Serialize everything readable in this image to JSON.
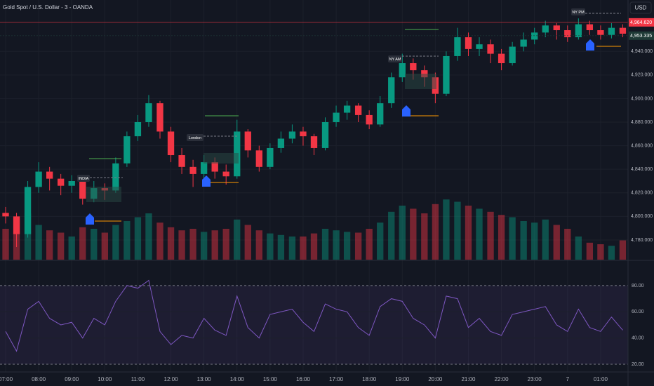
{
  "chart_data": {
    "type": "candlestick",
    "title": "Gold Spot / U.S. Dollar - 3 - OANDA",
    "currency": "USD",
    "x": [
      0,
      0.33,
      0.67,
      1,
      1.33,
      1.67,
      2,
      2.33,
      2.67,
      3,
      3.33,
      3.67,
      4,
      4.33,
      4.67,
      5,
      5.33,
      5.67,
      6,
      6.33,
      6.67,
      7,
      7.33,
      7.67,
      8,
      8.33,
      8.67,
      9,
      9.33,
      9.67,
      10,
      10.33,
      10.67,
      11,
      11.33,
      11.67,
      12,
      12.33,
      12.67,
      13,
      13.33,
      13.67,
      14,
      14.33,
      14.67,
      15,
      15.33,
      15.67,
      16,
      16.33,
      16.67,
      17,
      17.33,
      17.67,
      18,
      18.33,
      18.67
    ],
    "open": [
      4803,
      4800,
      4785,
      4825,
      4838,
      4832,
      4826,
      4830,
      4815,
      4824,
      4822,
      4845,
      4868,
      4880,
      4896,
      4872,
      4852,
      4842,
      4836,
      4846,
      4838,
      4834,
      4872,
      4856,
      4842,
      4858,
      4866,
      4872,
      4868,
      4858,
      4880,
      4888,
      4894,
      4886,
      4878,
      4896,
      4918,
      4930,
      4924,
      4918,
      4904,
      4936,
      4952,
      4942,
      4946,
      4938,
      4930,
      4944,
      4950,
      4956,
      4962,
      4958,
      4952,
      4963,
      4958,
      4954,
      4960
    ],
    "high": [
      4808,
      4803,
      4830,
      4846,
      4842,
      4836,
      4835,
      4833,
      4830,
      4828,
      4850,
      4872,
      4886,
      4903,
      4898,
      4876,
      4858,
      4848,
      4852,
      4850,
      4844,
      4882,
      4874,
      4860,
      4862,
      4872,
      4878,
      4876,
      4870,
      4884,
      4894,
      4898,
      4896,
      4890,
      4902,
      4922,
      4938,
      4934,
      4928,
      4922,
      4940,
      4960,
      4956,
      4952,
      4950,
      4942,
      4948,
      4956,
      4960,
      4966,
      4964,
      4962,
      4968,
      4966,
      4962,
      4964,
      4963
    ],
    "low": [
      4794,
      4774,
      4782,
      4820,
      4822,
      4818,
      4820,
      4810,
      4812,
      4814,
      4820,
      4842,
      4864,
      4876,
      4866,
      4846,
      4836,
      4825,
      4832,
      4832,
      4827,
      4832,
      4850,
      4838,
      4840,
      4854,
      4862,
      4860,
      4852,
      4856,
      4876,
      4882,
      4880,
      4874,
      4876,
      4892,
      4914,
      4916,
      4910,
      4896,
      4902,
      4932,
      4936,
      4936,
      4930,
      4924,
      4928,
      4940,
      4946,
      4952,
      4950,
      4948,
      4950,
      4954,
      4950,
      4951,
      4952
    ],
    "close": [
      4800,
      4785,
      4825,
      4838,
      4832,
      4826,
      4830,
      4815,
      4824,
      4822,
      4845,
      4868,
      4880,
      4896,
      4872,
      4852,
      4842,
      4836,
      4846,
      4838,
      4834,
      4872,
      4856,
      4842,
      4858,
      4866,
      4872,
      4868,
      4858,
      4880,
      4888,
      4894,
      4886,
      4878,
      4896,
      4918,
      4930,
      4924,
      4918,
      4904,
      4936,
      4952,
      4942,
      4946,
      4938,
      4930,
      4944,
      4950,
      4956,
      4962,
      4958,
      4952,
      4963,
      4958,
      4954,
      4960,
      4955
    ],
    "volume": [
      40,
      55,
      60,
      45,
      38,
      35,
      30,
      42,
      40,
      35,
      45,
      50,
      55,
      60,
      48,
      42,
      38,
      40,
      36,
      38,
      40,
      52,
      45,
      38,
      34,
      32,
      30,
      30,
      34,
      40,
      38,
      36,
      35,
      40,
      48,
      62,
      70,
      66,
      60,
      72,
      78,
      75,
      70,
      66,
      62,
      58,
      55,
      50,
      48,
      52,
      45,
      40,
      30,
      22,
      20,
      18,
      25
    ],
    "volume_ylim": [
      0,
      100
    ],
    "xlim": [
      -0.17,
      18.83
    ],
    "xticks": [
      {
        "value": 0,
        "label": "07:00"
      },
      {
        "value": 1,
        "label": "08:00"
      },
      {
        "value": 2,
        "label": "09:00"
      },
      {
        "value": 3,
        "label": "10:00"
      },
      {
        "value": 4,
        "label": "11:00"
      },
      {
        "value": 5,
        "label": "12:00"
      },
      {
        "value": 6,
        "label": "13:00"
      },
      {
        "value": 7,
        "label": "14:00"
      },
      {
        "value": 8,
        "label": "15:00"
      },
      {
        "value": 9,
        "label": "16:00"
      },
      {
        "value": 10,
        "label": "17:00"
      },
      {
        "value": 11,
        "label": "18:00"
      },
      {
        "value": 12,
        "label": "19:00"
      },
      {
        "value": 13,
        "label": "20:00"
      },
      {
        "value": 14,
        "label": "21:00"
      },
      {
        "value": 15,
        "label": "22:00"
      },
      {
        "value": 16,
        "label": "23:00"
      },
      {
        "value": 17,
        "label": "7"
      },
      {
        "value": 18,
        "label": "01:00"
      }
    ],
    "ylim": [
      4763.3,
      4983.6
    ],
    "yticks": [
      {
        "value": 4780,
        "label": "4,780.000"
      },
      {
        "value": 4800,
        "label": "4,800.000"
      },
      {
        "value": 4820,
        "label": "4,820.000"
      },
      {
        "value": 4840,
        "label": "4,840.000"
      },
      {
        "value": 4860,
        "label": "4,860.000"
      },
      {
        "value": 4880,
        "label": "4,880.000"
      },
      {
        "value": 4900,
        "label": "4,900.000"
      },
      {
        "value": 4920,
        "label": "4,920.000"
      },
      {
        "value": 4940,
        "label": "4,940.000"
      }
    ],
    "price_labels": [
      {
        "value": 4964.62,
        "label": "4,964.620",
        "color": "#f23645"
      },
      {
        "value": 4953.335,
        "label": "4,953.335",
        "color": "#1e3a36"
      }
    ],
    "up_color": "#089981",
    "down_color": "#f23645",
    "grid": true,
    "sessions": [
      "INDIA",
      "London",
      "NY AM",
      "NY PM"
    ],
    "rsi": {
      "color": "#7e57c2",
      "values": [
        45,
        30,
        62,
        68,
        55,
        50,
        52,
        40,
        55,
        50,
        68,
        80,
        78,
        84,
        45,
        35,
        42,
        40,
        55,
        46,
        42,
        72,
        48,
        40,
        58,
        60,
        62,
        52,
        45,
        66,
        62,
        60,
        48,
        42,
        64,
        70,
        68,
        55,
        50,
        40,
        72,
        70,
        48,
        55,
        45,
        42,
        58,
        60,
        62,
        64,
        50,
        45,
        62,
        48,
        45,
        56,
        46
      ],
      "ylim": [
        14.1,
        98.7
      ],
      "yticks": [
        {
          "value": 80,
          "label": "80.00"
        },
        {
          "value": 60,
          "label": "60.00"
        },
        {
          "value": 40,
          "label": "40.00"
        },
        {
          "value": 20,
          "label": "20.00"
        }
      ]
    }
  }
}
